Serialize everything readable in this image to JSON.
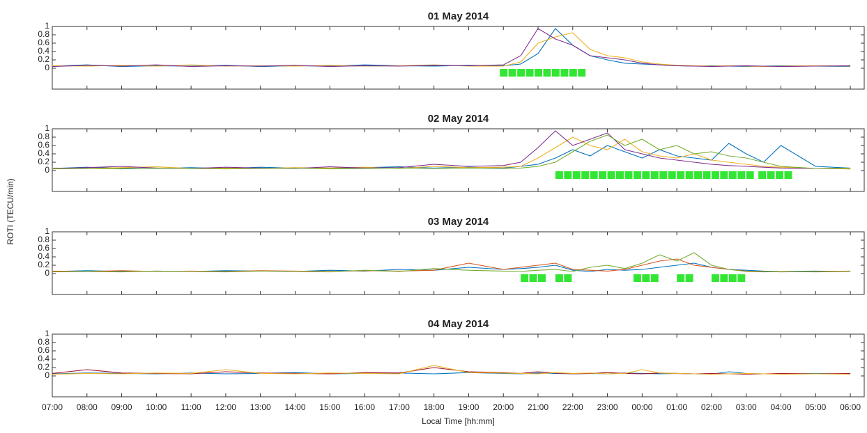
{
  "chart_data": [
    {
      "type": "line",
      "title": "01 May 2014",
      "ylabel": "ROTI (TECU/min)",
      "x": [
        7,
        8,
        9,
        10,
        11,
        12,
        13,
        14,
        15,
        16,
        17,
        18,
        19,
        20,
        20.5,
        21,
        21.5,
        22,
        22.5,
        23,
        23.5,
        24,
        24.5,
        25,
        25.5,
        26,
        26.5,
        27,
        27.5,
        28,
        29,
        30
      ],
      "xlim": [
        7,
        30.4
      ],
      "xticks": [
        7,
        8,
        9,
        10,
        11,
        12,
        13,
        14,
        15,
        16,
        17,
        18,
        19,
        20,
        21,
        22,
        23,
        24,
        25,
        26,
        27,
        28,
        29,
        30
      ],
      "ylim": [
        -0.5,
        1
      ],
      "yticks": [
        0,
        0.2,
        0.4,
        0.6,
        0.8,
        1
      ],
      "series": [
        {
          "color": "#0072bd",
          "values": [
            0.05,
            0.08,
            0.04,
            0.06,
            0.05,
            0.07,
            0.04,
            0.06,
            0.05,
            0.08,
            0.06,
            0.05,
            0.07,
            0.06,
            0.1,
            0.35,
            0.95,
            0.55,
            0.3,
            0.2,
            0.12,
            0.1,
            0.08,
            0.06,
            0.05,
            0.06,
            0.05,
            0.04,
            0.05,
            0.06,
            0.05,
            0.04
          ]
        },
        {
          "color": "#edb120",
          "values": [
            0.06,
            0.05,
            0.07,
            0.05,
            0.08,
            0.05,
            0.06,
            0.05,
            0.07,
            0.05,
            0.06,
            0.08,
            0.05,
            0.05,
            0.15,
            0.6,
            0.75,
            0.85,
            0.45,
            0.3,
            0.25,
            0.15,
            0.1,
            0.07,
            0.06,
            0.05,
            0.06,
            0.05,
            0.04,
            0.05,
            0.06,
            0.05
          ]
        },
        {
          "color": "#7e2f8e",
          "values": [
            0.04,
            0.07,
            0.05,
            0.08,
            0.04,
            0.06,
            0.05,
            0.07,
            0.04,
            0.06,
            0.05,
            0.07,
            0.06,
            0.08,
            0.3,
            0.95,
            0.7,
            0.55,
            0.3,
            0.25,
            0.2,
            0.12,
            0.08,
            0.06,
            0.05,
            0.04,
            0.05,
            0.06,
            0.05,
            0.04,
            0.05,
            0.06
          ]
        }
      ],
      "flag_color": "#33e633",
      "flags": [
        19.9,
        20.15,
        20.4,
        20.65,
        20.9,
        21.15,
        21.4,
        21.65,
        21.9,
        22.15
      ]
    },
    {
      "type": "line",
      "title": "02 May 2014",
      "x": [
        7,
        8,
        9,
        10,
        11,
        12,
        13,
        14,
        15,
        16,
        17,
        18,
        19,
        20,
        20.5,
        21,
        21.5,
        22,
        22.5,
        23,
        23.5,
        24,
        24.5,
        25,
        25.5,
        26,
        26.5,
        27,
        27.5,
        28,
        29,
        30
      ],
      "xlim": [
        7,
        30.4
      ],
      "xticks": [
        7,
        8,
        9,
        10,
        11,
        12,
        13,
        14,
        15,
        16,
        17,
        18,
        19,
        20,
        21,
        22,
        23,
        24,
        25,
        26,
        27,
        28,
        29,
        30
      ],
      "ylim": [
        -0.5,
        1
      ],
      "yticks": [
        0,
        0.2,
        0.4,
        0.6,
        0.8,
        1
      ],
      "series": [
        {
          "color": "#0072bd",
          "values": [
            0.05,
            0.08,
            0.06,
            0.05,
            0.07,
            0.05,
            0.08,
            0.06,
            0.05,
            0.07,
            0.09,
            0.06,
            0.08,
            0.06,
            0.1,
            0.15,
            0.3,
            0.5,
            0.35,
            0.6,
            0.45,
            0.3,
            0.5,
            0.35,
            0.3,
            0.25,
            0.65,
            0.4,
            0.2,
            0.6,
            0.1,
            0.06
          ]
        },
        {
          "color": "#edb120",
          "values": [
            0.06,
            0.05,
            0.07,
            0.09,
            0.05,
            0.06,
            0.05,
            0.07,
            0.06,
            0.08,
            0.05,
            0.1,
            0.07,
            0.08,
            0.1,
            0.3,
            0.55,
            0.8,
            0.6,
            0.5,
            0.75,
            0.45,
            0.35,
            0.3,
            0.4,
            0.25,
            0.2,
            0.15,
            0.1,
            0.08,
            0.05,
            0.06
          ]
        },
        {
          "color": "#7e2f8e",
          "values": [
            0.05,
            0.07,
            0.1,
            0.06,
            0.05,
            0.08,
            0.06,
            0.05,
            0.09,
            0.06,
            0.07,
            0.15,
            0.1,
            0.12,
            0.2,
            0.55,
            0.95,
            0.6,
            0.75,
            0.9,
            0.5,
            0.4,
            0.3,
            0.25,
            0.2,
            0.15,
            0.12,
            0.1,
            0.08,
            0.06,
            0.05,
            0.04
          ]
        },
        {
          "color": "#77ac30",
          "values": [
            0.04,
            0.05,
            0.04,
            0.06,
            0.05,
            0.04,
            0.05,
            0.06,
            0.04,
            0.05,
            0.06,
            0.05,
            0.06,
            0.05,
            0.06,
            0.1,
            0.2,
            0.45,
            0.7,
            0.85,
            0.6,
            0.75,
            0.5,
            0.6,
            0.4,
            0.45,
            0.35,
            0.3,
            0.2,
            0.1,
            0.05,
            0.04
          ]
        }
      ],
      "flag_color": "#33e633",
      "flags": [
        21.5,
        21.75,
        22.0,
        22.25,
        22.5,
        22.75,
        23.0,
        23.25,
        23.5,
        23.75,
        24.0,
        24.25,
        24.5,
        24.75,
        25.0,
        25.25,
        25.5,
        25.75,
        26.0,
        26.25,
        26.5,
        26.75,
        27.0,
        27.35,
        27.6,
        27.85,
        28.1
      ]
    },
    {
      "type": "line",
      "title": "03 May 2014",
      "x": [
        7,
        8,
        9,
        10,
        11,
        12,
        13,
        14,
        15,
        16,
        17,
        18,
        19,
        20,
        20.5,
        21,
        21.5,
        22,
        22.5,
        23,
        23.5,
        24,
        24.5,
        25,
        25.5,
        26,
        26.5,
        27,
        27.5,
        28,
        29,
        30
      ],
      "xlim": [
        7,
        30.4
      ],
      "xticks": [
        7,
        8,
        9,
        10,
        11,
        12,
        13,
        14,
        15,
        16,
        17,
        18,
        19,
        20,
        21,
        22,
        23,
        24,
        25,
        26,
        27,
        28,
        29,
        30
      ],
      "ylim": [
        -0.5,
        1
      ],
      "yticks": [
        0,
        0.2,
        0.4,
        0.6,
        0.8,
        1
      ],
      "series": [
        {
          "color": "#0072bd",
          "values": [
            0.05,
            0.07,
            0.05,
            0.06,
            0.05,
            0.07,
            0.06,
            0.05,
            0.08,
            0.06,
            0.1,
            0.08,
            0.15,
            0.1,
            0.12,
            0.15,
            0.2,
            0.08,
            0.05,
            0.1,
            0.08,
            0.1,
            0.15,
            0.2,
            0.25,
            0.15,
            0.1,
            0.08,
            0.06,
            0.05,
            0.06,
            0.05
          ]
        },
        {
          "color": "#d95319",
          "values": [
            0.06,
            0.05,
            0.07,
            0.05,
            0.06,
            0.05,
            0.07,
            0.06,
            0.05,
            0.07,
            0.06,
            0.08,
            0.25,
            0.1,
            0.15,
            0.2,
            0.25,
            0.1,
            0.08,
            0.06,
            0.1,
            0.2,
            0.3,
            0.35,
            0.2,
            0.15,
            0.1,
            0.06,
            0.05,
            0.04,
            0.05,
            0.06
          ]
        },
        {
          "color": "#77ac30",
          "values": [
            0.04,
            0.05,
            0.04,
            0.06,
            0.05,
            0.04,
            0.06,
            0.05,
            0.04,
            0.08,
            0.05,
            0.12,
            0.08,
            0.06,
            0.05,
            0.08,
            0.1,
            0.05,
            0.15,
            0.2,
            0.12,
            0.25,
            0.45,
            0.3,
            0.5,
            0.2,
            0.1,
            0.05,
            0.04,
            0.05,
            0.04,
            0.05
          ]
        }
      ],
      "flag_color": "#33e633",
      "flags": [
        20.5,
        20.75,
        21.0,
        21.5,
        21.75,
        23.75,
        24.0,
        24.25,
        25.0,
        25.25,
        26.0,
        26.25,
        26.5,
        26.75
      ]
    },
    {
      "type": "line",
      "title": "04 May 2014",
      "xlabel": "Local Time [hh:mm]",
      "x": [
        7,
        8,
        9,
        10,
        11,
        12,
        13,
        14,
        15,
        16,
        17,
        18,
        19,
        20,
        20.5,
        21,
        21.5,
        22,
        22.5,
        23,
        23.5,
        24,
        24.5,
        25,
        25.5,
        26,
        26.5,
        27,
        27.5,
        28,
        29,
        30
      ],
      "xlim": [
        7,
        30.4
      ],
      "xticks": [
        {
          "value": 7,
          "label": "07:00"
        },
        {
          "value": 8,
          "label": "08:00"
        },
        {
          "value": 9,
          "label": "09:00"
        },
        {
          "value": 10,
          "label": "10:00"
        },
        {
          "value": 11,
          "label": "11:00"
        },
        {
          "value": 12,
          "label": "12:00"
        },
        {
          "value": 13,
          "label": "13:00"
        },
        {
          "value": 14,
          "label": "14:00"
        },
        {
          "value": 15,
          "label": "15:00"
        },
        {
          "value": 16,
          "label": "16:00"
        },
        {
          "value": 17,
          "label": "17:00"
        },
        {
          "value": 18,
          "label": "18:00"
        },
        {
          "value": 19,
          "label": "19:00"
        },
        {
          "value": 20,
          "label": "20:00"
        },
        {
          "value": 21,
          "label": "21:00"
        },
        {
          "value": 22,
          "label": "22:00"
        },
        {
          "value": 23,
          "label": "23:00"
        },
        {
          "value": 24,
          "label": "00:00"
        },
        {
          "value": 25,
          "label": "01:00"
        },
        {
          "value": 26,
          "label": "02:00"
        },
        {
          "value": 27,
          "label": "03:00"
        },
        {
          "value": 28,
          "label": "04:00"
        },
        {
          "value": 29,
          "label": "05:00"
        },
        {
          "value": 30,
          "label": "06:00"
        }
      ],
      "ylim": [
        -0.5,
        1
      ],
      "yticks": [
        0,
        0.2,
        0.4,
        0.6,
        0.8,
        1
      ],
      "series": [
        {
          "color": "#0072bd",
          "values": [
            0.05,
            0.07,
            0.06,
            0.05,
            0.07,
            0.05,
            0.06,
            0.08,
            0.05,
            0.06,
            0.07,
            0.05,
            0.08,
            0.06,
            0.05,
            0.07,
            0.06,
            0.05,
            0.06,
            0.05,
            0.07,
            0.06,
            0.05,
            0.06,
            0.05,
            0.04,
            0.1,
            0.06,
            0.05,
            0.05,
            0.06,
            0.05
          ]
        },
        {
          "color": "#a2142f",
          "values": [
            0.06,
            0.15,
            0.07,
            0.06,
            0.05,
            0.1,
            0.07,
            0.06,
            0.05,
            0.08,
            0.07,
            0.2,
            0.1,
            0.08,
            0.06,
            0.1,
            0.07,
            0.05,
            0.06,
            0.08,
            0.06,
            0.05,
            0.07,
            0.06,
            0.05,
            0.06,
            0.05,
            0.04,
            0.05,
            0.06,
            0.05,
            0.06
          ]
        },
        {
          "color": "#edb120",
          "values": [
            0.04,
            0.06,
            0.05,
            0.07,
            0.06,
            0.15,
            0.06,
            0.05,
            0.07,
            0.06,
            0.05,
            0.25,
            0.08,
            0.07,
            0.06,
            0.05,
            0.08,
            0.06,
            0.07,
            0.05,
            0.06,
            0.15,
            0.07,
            0.06,
            0.05,
            0.04,
            0.05,
            0.06,
            0.05,
            0.04,
            0.05,
            0.04
          ]
        }
      ]
    }
  ]
}
